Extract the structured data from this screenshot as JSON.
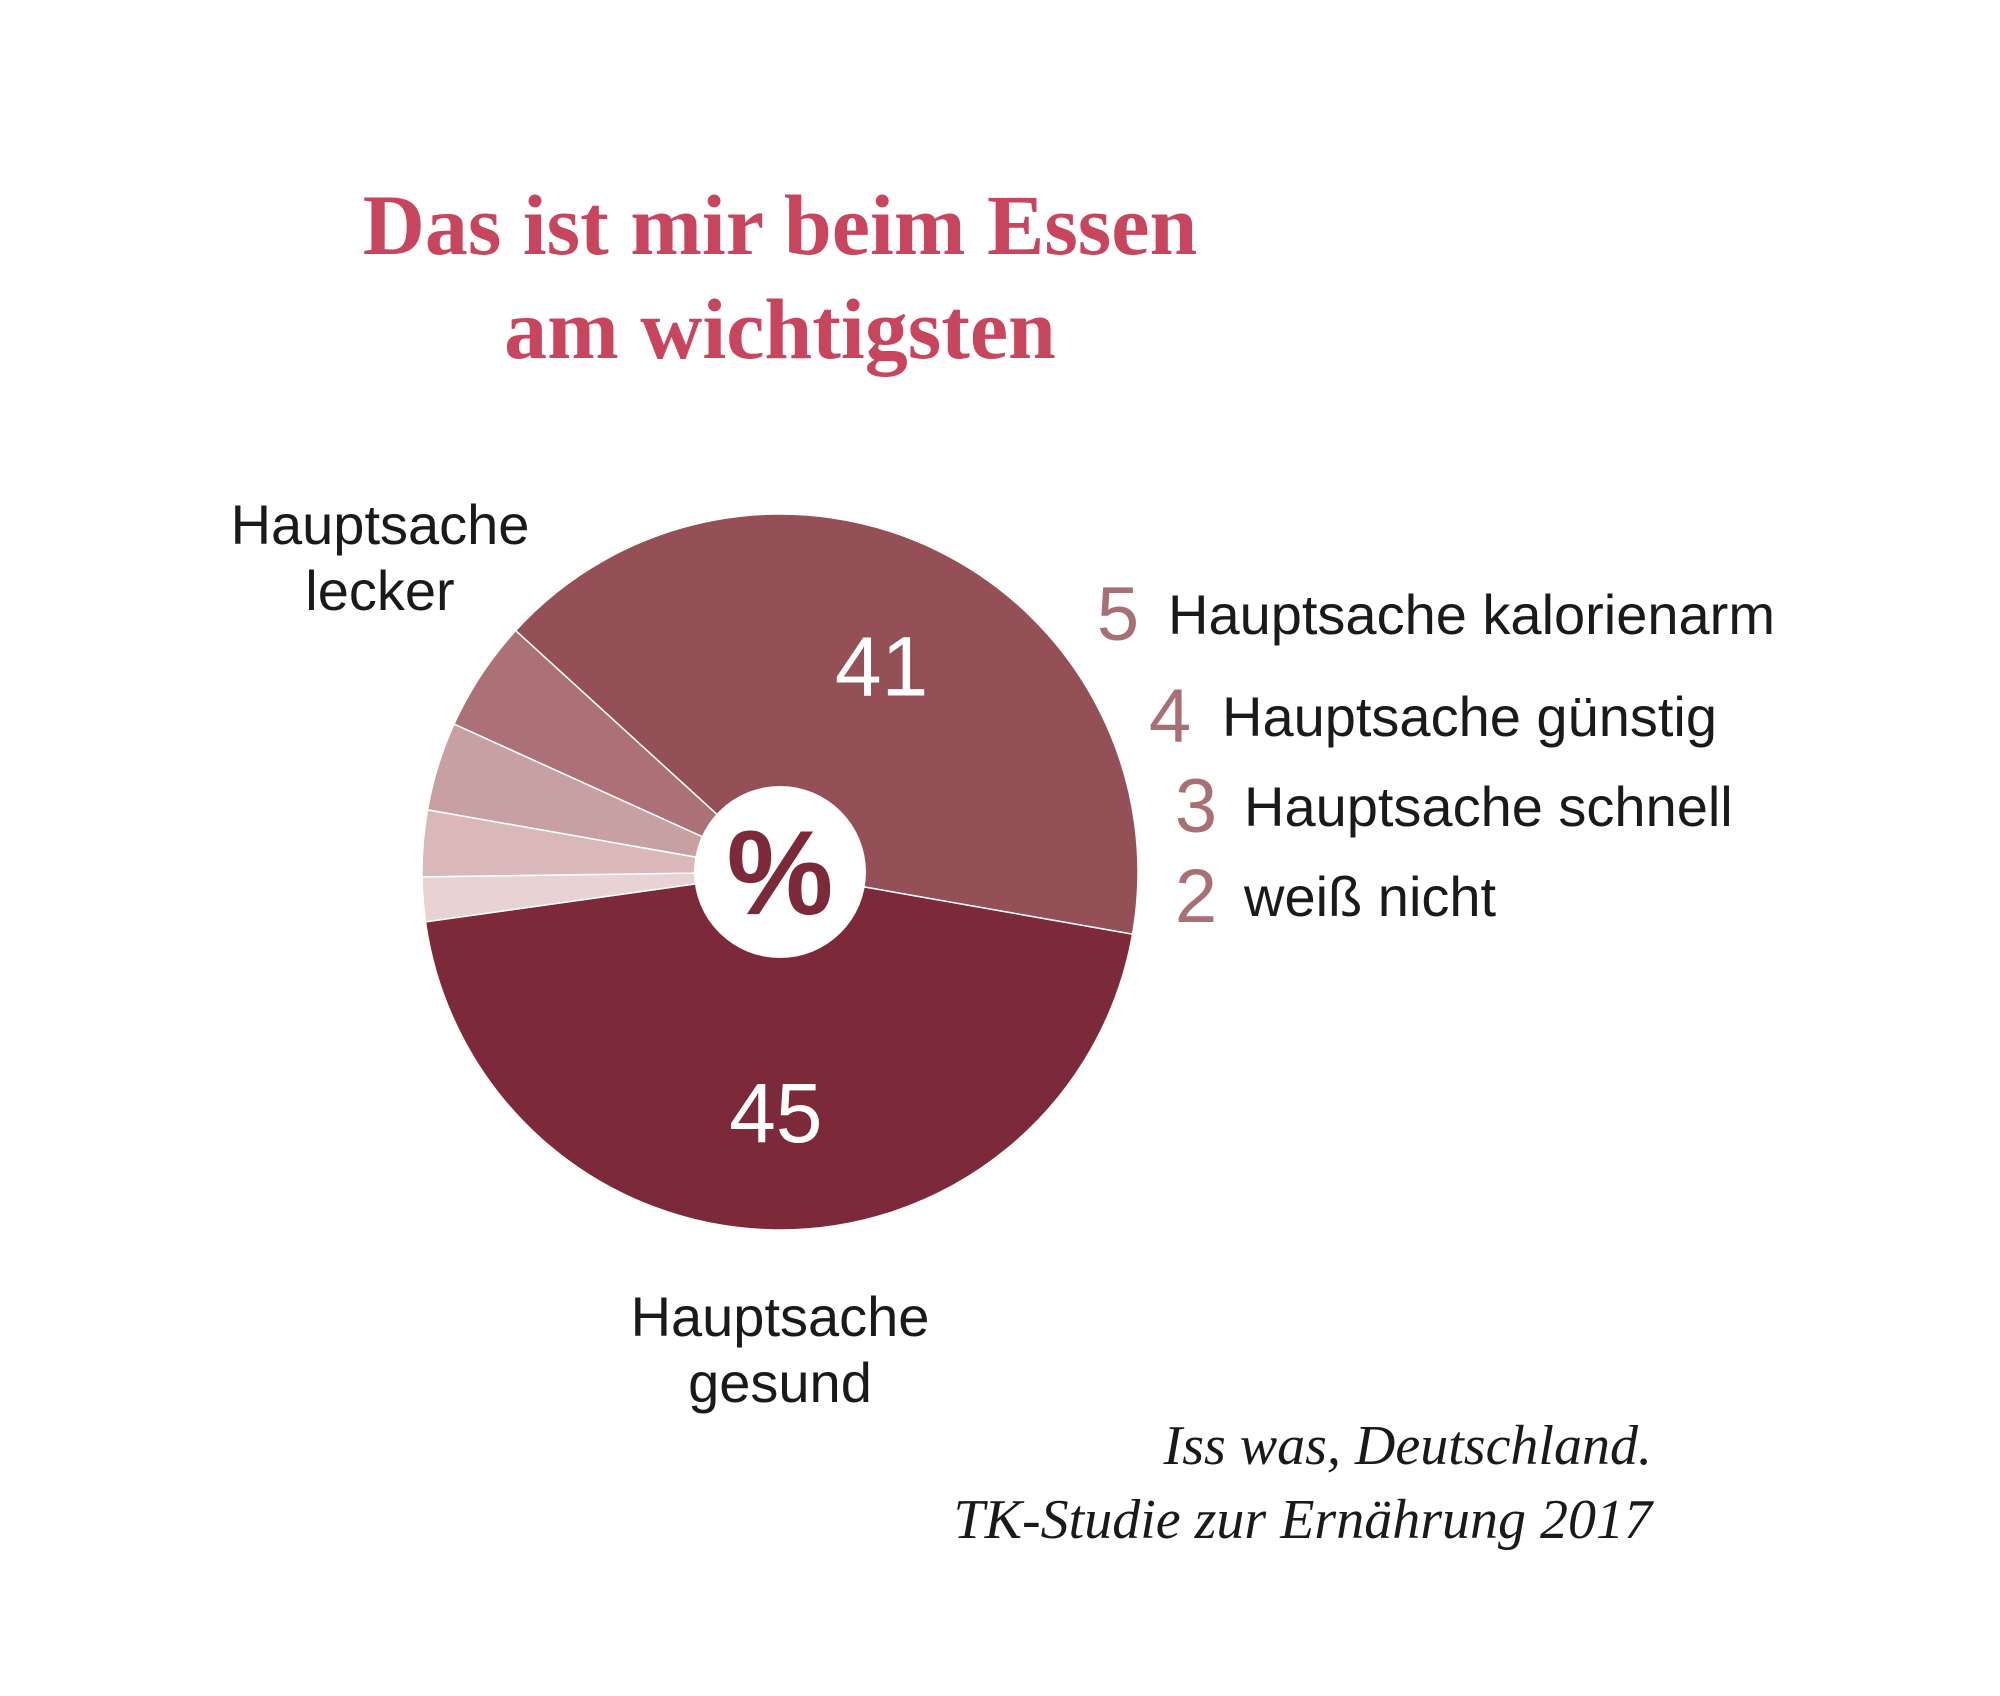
{
  "chart_data": {
    "type": "pie",
    "title": [
      "Das ist mir beim Essen",
      "am wichtigsten"
    ],
    "unit_symbol": "%",
    "slices": [
      {
        "label": [
          "Hauptsache",
          "gesund"
        ],
        "value": 45,
        "color": "#7c2a3a"
      },
      {
        "label": [
          "Hauptsache",
          "lecker"
        ],
        "value": 41,
        "color": "#944f57"
      },
      {
        "label": "Hauptsache kalorienarm",
        "value": 5,
        "color": "#ac7176"
      },
      {
        "label": "Hauptsache günstig",
        "value": 4,
        "color": "#c9a0a2"
      },
      {
        "label": "Hauptsache schnell",
        "value": 3,
        "color": "#dab8b9"
      },
      {
        "label": "weiß nicht",
        "value": 2,
        "color": "#e8d2d3"
      }
    ],
    "value_color_small": "#a86f74",
    "source": [
      "Iss was, Deutschland.",
      "TK-Studie zur Ernährung 2017"
    ]
  }
}
